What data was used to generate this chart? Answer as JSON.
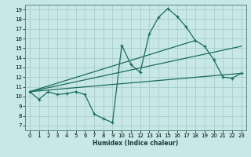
{
  "xlabel": "Humidex (Indice chaleur)",
  "bg_color": "#c8e8e8",
  "line_color": "#1a6b5a",
  "grid_color": "#a8cccc",
  "xlim": [
    -0.5,
    23.5
  ],
  "ylim": [
    6.5,
    19.5
  ],
  "xticks": [
    0,
    1,
    2,
    3,
    4,
    5,
    6,
    7,
    8,
    9,
    10,
    11,
    12,
    13,
    14,
    15,
    16,
    17,
    18,
    19,
    20,
    21,
    22,
    23
  ],
  "yticks": [
    7,
    8,
    9,
    10,
    11,
    12,
    13,
    14,
    15,
    16,
    17,
    18,
    19
  ],
  "main_x": [
    0,
    1,
    2,
    3,
    4,
    5,
    6,
    7,
    8,
    9,
    10,
    11,
    12,
    13,
    14,
    15,
    16,
    17,
    18,
    19,
    20,
    21,
    22,
    23
  ],
  "main_y": [
    10.5,
    9.7,
    10.5,
    10.2,
    10.3,
    10.5,
    10.2,
    8.2,
    7.7,
    7.3,
    15.3,
    13.3,
    12.5,
    16.5,
    18.2,
    19.1,
    18.3,
    17.2,
    15.8,
    15.2,
    13.8,
    12.0,
    11.9,
    12.4
  ],
  "trend1_x": [
    0,
    23
  ],
  "trend1_y": [
    10.5,
    12.4
  ],
  "trend2_x": [
    0,
    23
  ],
  "trend2_y": [
    10.5,
    15.2
  ],
  "trend3_x": [
    0,
    18
  ],
  "trend3_y": [
    10.5,
    15.8
  ]
}
